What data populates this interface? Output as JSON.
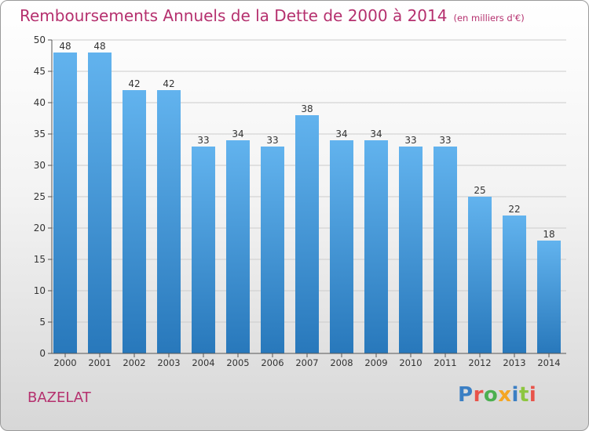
{
  "header": {
    "title": "Remboursements Annuels de la Dette de 2000 à 2014",
    "unit": "(en milliers d'€)"
  },
  "footer": {
    "commune": "BAZELAT",
    "logo_letters": [
      "P",
      "r",
      "o",
      "x",
      "i",
      "t",
      "i"
    ],
    "logo_colors": [
      "#3b7fc4",
      "#e8534a",
      "#4caf50",
      "#f5a623",
      "#3b7fc4",
      "#8dc63f",
      "#e8534a"
    ]
  },
  "colors": {
    "bar_top": "#62b3ee",
    "bar_bottom": "#2878bb",
    "title": "#b5306e",
    "grid": "#cccccc",
    "axis": "#555555",
    "text": "#333333"
  },
  "chart_data": {
    "type": "bar",
    "title": "Remboursements Annuels de la Dette de 2000 à 2014",
    "xlabel": "",
    "ylabel": "",
    "categories": [
      "2000",
      "2001",
      "2002",
      "2003",
      "2004",
      "2005",
      "2006",
      "2007",
      "2008",
      "2009",
      "2010",
      "2011",
      "2012",
      "2013",
      "2014"
    ],
    "values": [
      48,
      48,
      42,
      42,
      33,
      34,
      33,
      38,
      34,
      34,
      33,
      33,
      25,
      22,
      18
    ],
    "ylim": [
      0,
      50
    ],
    "yticks": [
      0,
      5,
      10,
      15,
      20,
      25,
      30,
      35,
      40,
      45,
      50
    ],
    "grid": true
  }
}
